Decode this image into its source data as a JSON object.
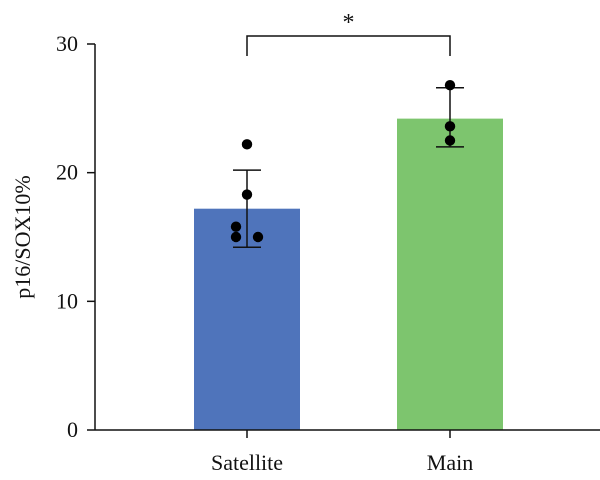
{
  "chart_data": {
    "type": "bar",
    "title": "",
    "xlabel": "",
    "ylabel": "p16/SOX10%",
    "ylim": [
      0,
      30
    ],
    "yticks": [
      0,
      10,
      20,
      30
    ],
    "grid": false,
    "categories": [
      "Satellite",
      "Main"
    ],
    "series": [
      {
        "values": [
          17.2,
          24.2
        ],
        "error": [
          [
            14.2,
            20.2
          ],
          [
            22.0,
            26.6
          ]
        ],
        "colors": [
          "#4f74bb",
          "#7dc56e"
        ]
      }
    ],
    "points": [
      [
        22.2,
        18.3,
        15.8,
        15.0,
        15.0
      ],
      [
        26.8,
        23.6,
        22.5
      ]
    ],
    "annotations": [
      {
        "text": "*",
        "between": [
          "Satellite",
          "Main"
        ],
        "type": "significance-bracket"
      }
    ]
  }
}
